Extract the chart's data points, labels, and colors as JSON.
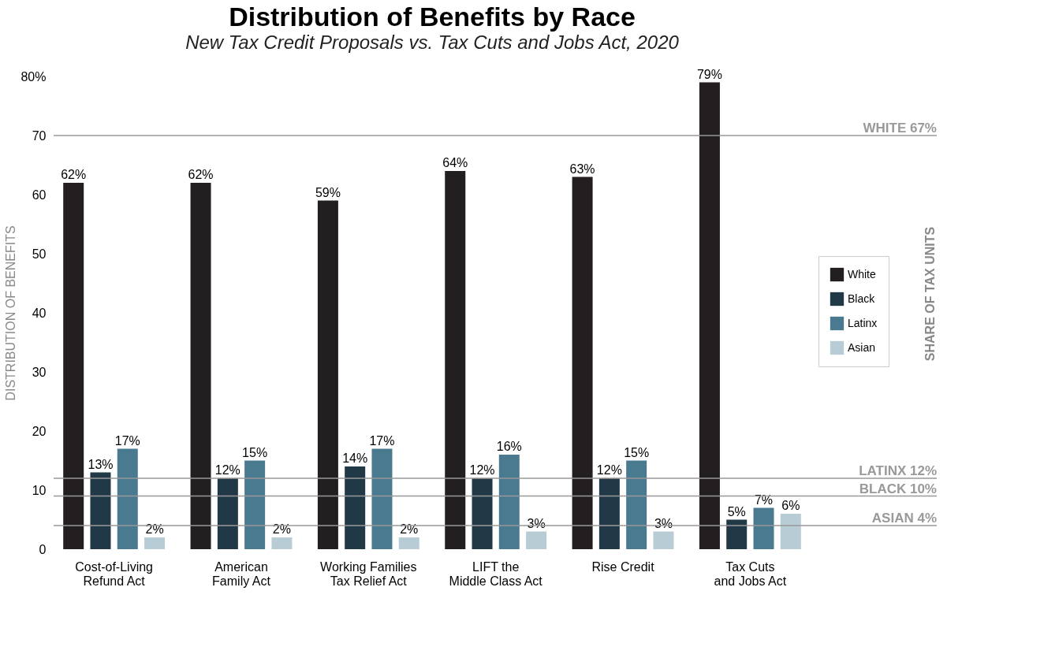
{
  "chart_data": {
    "type": "bar",
    "title": "Distribution of Benefits by Race",
    "subtitle": "New Tax Credit Proposals vs. Tax Cuts and Jobs Act, 2020",
    "ylabel": "DISTRIBUTION OF BENEFITS",
    "annotations": [
      "SHARE OF TAX UNITS"
    ],
    "categories": [
      "Cost-of-Living\nRefund Act",
      "American\nFamily Act",
      "Working Families\nTax Relief Act",
      "LIFT the\nMiddle Class Act",
      "Rise Credit",
      "Tax Cuts\nand Jobs Act"
    ],
    "series": [
      {
        "name": "White",
        "color": "#231f20",
        "values": [
          62,
          62,
          59,
          64,
          63,
          79
        ],
        "value_labels": [
          "62%",
          "62%",
          "59%",
          "64%",
          "63%",
          "79%"
        ]
      },
      {
        "name": "Black",
        "color": "#213847",
        "values": [
          13,
          12,
          14,
          12,
          12,
          5
        ],
        "value_labels": [
          "13%",
          "12%",
          "14%",
          "12%",
          "12%",
          "5%"
        ]
      },
      {
        "name": "Latinx",
        "color": "#4a7a90",
        "values": [
          17,
          15,
          17,
          16,
          15,
          7
        ],
        "value_labels": [
          "17%",
          "15%",
          "17%",
          "16%",
          "15%",
          "7%"
        ]
      },
      {
        "name": "Asian",
        "color": "#b8ccd6",
        "values": [
          2,
          2,
          2,
          3,
          3,
          6
        ],
        "value_labels": [
          "2%",
          "2%",
          "2%",
          "3%",
          "3%",
          "6%"
        ]
      }
    ],
    "ylim": [
      0,
      80
    ],
    "yticks": [
      0,
      10,
      20,
      30,
      40,
      50,
      60,
      70,
      {
        "value": 80,
        "label": "80%"
      }
    ],
    "ref_lines": [
      {
        "axis": "y",
        "value": 70,
        "label": "WHITE 67%",
        "color": "#999999"
      },
      {
        "axis": "y",
        "value": 12,
        "label": "LATINX 12%",
        "color": "#999999"
      },
      {
        "axis": "y",
        "value": 9,
        "label": "BLACK 10%",
        "color": "#999999"
      },
      {
        "axis": "y",
        "value": 4,
        "label": "ASIAN 4%",
        "color": "#999999"
      }
    ],
    "legend": "right",
    "grid": false
  }
}
